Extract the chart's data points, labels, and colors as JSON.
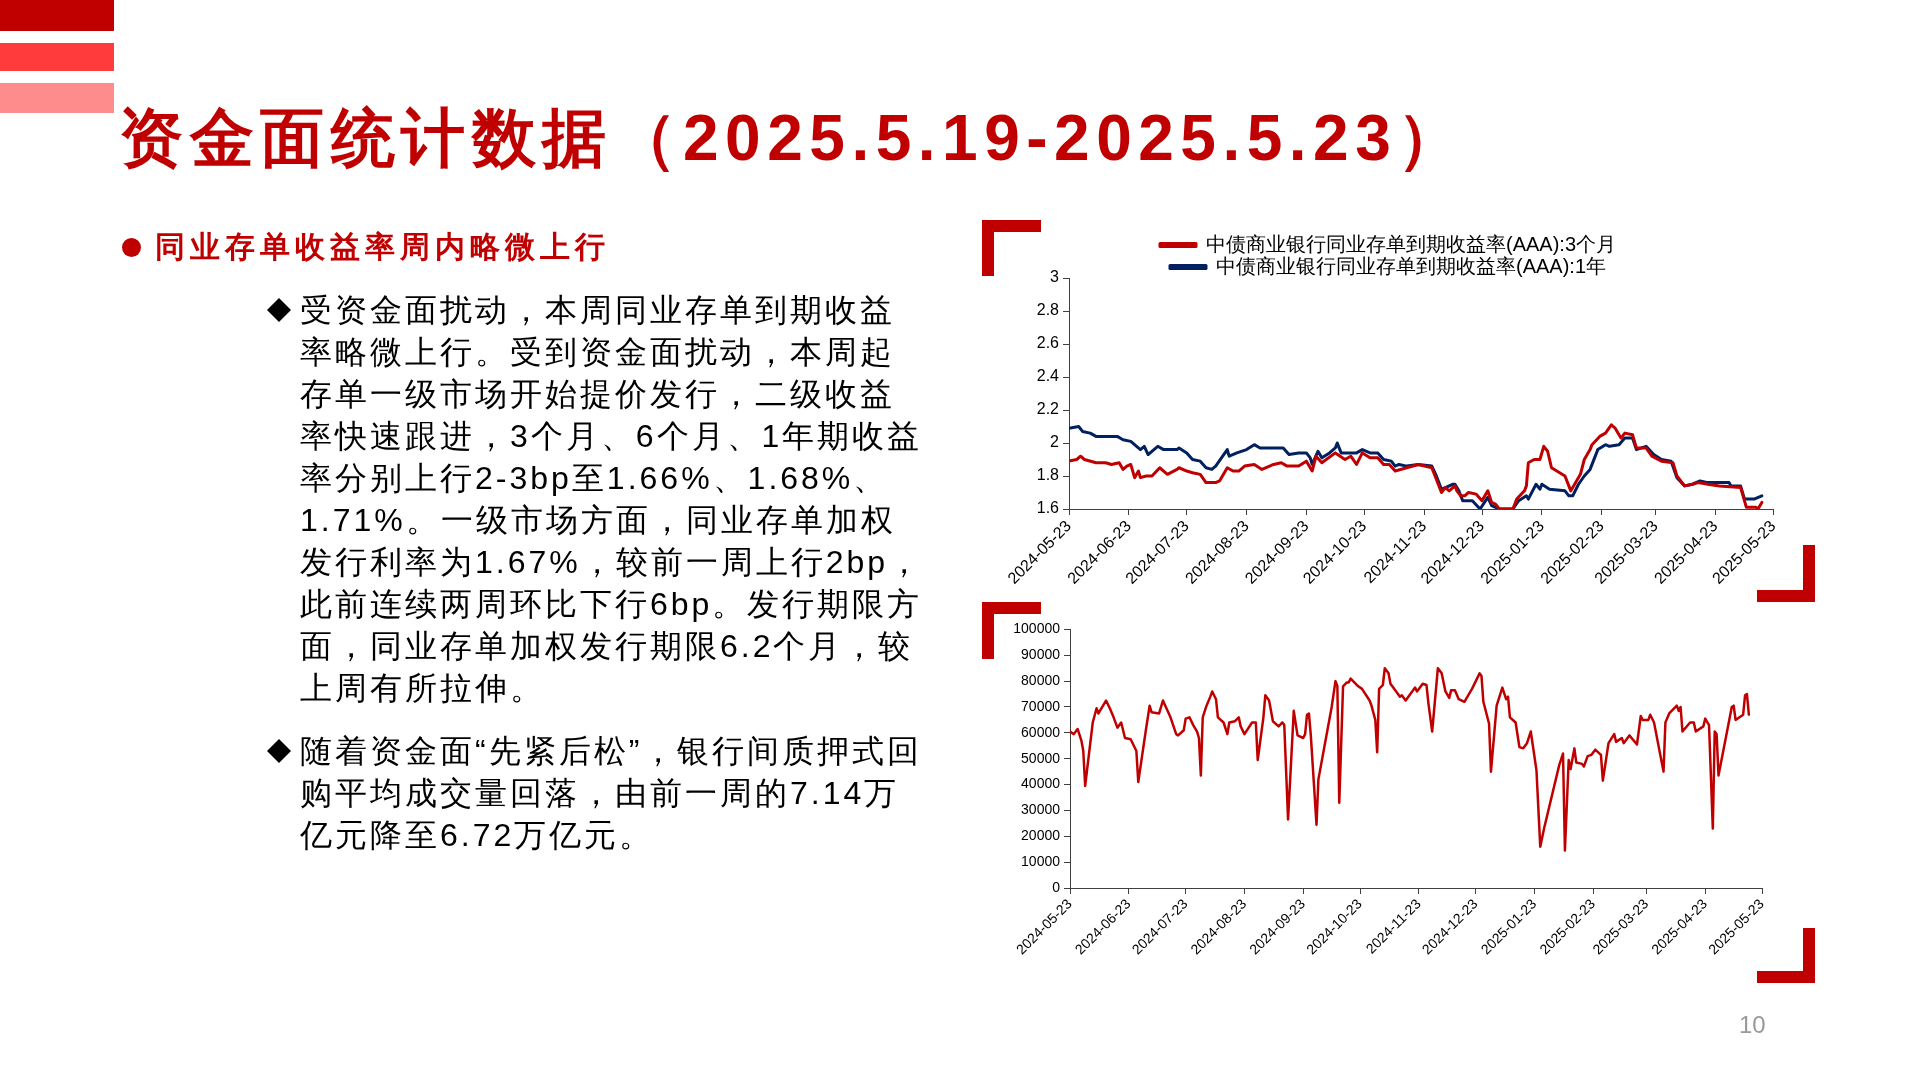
{
  "chart_data": [
    {
      "type": "other",
      "title": "资金面统计数据（2025.5.19-2025.5.23）",
      "annotations": [
        "同业存单收益率周内略微上行",
        "受资金面扰动，本周同业存单到期收益率略微上行。受到资金面扰动，本周起存单一级市场开始提价发行，二级收益率快速跟进，3个月、6个月、1年期收益率分别上行2-3bp至1.66%、1.68%、1.71%。一级市场方面，同业存单加权发行利率为1.67%，较前一周上行2bp，此前连续两周环比下行6bp。发行期限方面，同业存单加权发行期限6.2个月，较上周有所拉伸。",
        "随着资金面“先紧后松”，银行间质押式回购平均成交量回落，由前一周的7.14万亿元降至6.72万亿元。",
        "10"
      ]
    },
    {
      "type": "line",
      "legend": "top",
      "xlim": [
        "2024-05-23",
        "2025-05-23"
      ],
      "xticks": [
        "2024-05-23",
        "2024-06-23",
        "2024-07-23",
        "2024-08-23",
        "2024-09-23",
        "2024-10-23",
        "2024-11-23",
        "2024-12-23",
        "2025-01-23",
        "2025-02-23",
        "2025-03-23",
        "2025-04-23",
        "2025-05-23"
      ],
      "ylim": [
        1.6,
        3
      ],
      "yticks": [
        1.6,
        1.8,
        2,
        2.2,
        2.4,
        2.6,
        2.8,
        3
      ],
      "series": [
        {
          "name": "中债商业银行同业存单到期收益率(AAA):3个月",
          "color": "#c00000",
          "x": [
            "2024-05-23",
            "2024-05-27",
            "2024-05-29",
            "2024-05-31",
            "2024-06-06",
            "2024-06-11",
            "2024-06-14",
            "2024-06-18",
            "2024-06-20",
            "2024-06-22",
            "2024-06-24",
            "2024-06-26",
            "2024-06-28",
            "2024-06-29",
            "2024-07-02",
            "2024-07-05",
            "2024-07-09",
            "2024-07-13",
            "2024-07-18",
            "2024-07-19",
            "2024-07-23",
            "2024-07-26",
            "2024-07-30",
            "2024-08-02",
            "2024-08-07",
            "2024-08-09",
            "2024-08-13",
            "2024-08-16",
            "2024-08-19",
            "2024-08-22",
            "2024-08-27",
            "2024-08-31",
            "2024-09-06",
            "2024-09-10",
            "2024-09-13",
            "2024-09-19",
            "2024-09-23",
            "2024-09-26",
            "2024-09-28",
            "2024-10-01",
            "2024-10-08",
            "2024-10-13",
            "2024-10-16",
            "2024-10-19",
            "2024-10-22",
            "2024-10-26",
            "2024-10-30",
            "2024-11-02",
            "2024-11-05",
            "2024-11-08",
            "2024-11-14",
            "2024-11-20",
            "2024-11-27",
            "2024-12-02",
            "2024-12-04",
            "2024-12-06",
            "2024-12-09",
            "2024-12-10",
            "2024-12-12",
            "2024-12-14",
            "2024-12-16",
            "2024-12-20",
            "2024-12-23",
            "2024-12-26",
            "2024-12-28",
            "2024-12-30",
            "2025-01-01",
            "2025-01-08",
            "2025-01-10",
            "2025-01-14",
            "2025-01-15",
            "2025-01-16",
            "2025-01-19",
            "2025-01-22",
            "2025-01-24",
            "2025-01-26",
            "2025-01-28",
            "2025-02-04",
            "2025-02-07",
            "2025-02-09",
            "2025-02-12",
            "2025-02-14",
            "2025-02-17",
            "2025-02-18",
            "2025-02-22",
            "2025-02-25",
            "2025-02-28",
            "2025-03-02",
            "2025-03-05",
            "2025-03-07",
            "2025-03-11",
            "2025-03-13",
            "2025-03-18",
            "2025-03-21",
            "2025-03-26",
            "2025-04-01",
            "2025-04-03",
            "2025-04-07",
            "2025-04-11",
            "2025-04-14",
            "2025-04-19",
            "2025-04-25",
            "2025-05-06",
            "2025-05-09",
            "2025-05-14",
            "2025-05-15",
            "2025-05-17"
          ],
          "values": [
            1.89,
            1.9,
            1.92,
            1.9,
            1.88,
            1.88,
            1.87,
            1.88,
            1.84,
            1.86,
            1.87,
            1.79,
            1.83,
            1.79,
            1.8,
            1.8,
            1.85,
            1.81,
            1.84,
            1.85,
            1.83,
            1.82,
            1.81,
            1.76,
            1.76,
            1.77,
            1.85,
            1.83,
            1.83,
            1.86,
            1.87,
            1.84,
            1.87,
            1.88,
            1.86,
            1.86,
            1.89,
            1.83,
            1.92,
            1.88,
            1.94,
            1.9,
            1.92,
            1.87,
            1.94,
            1.91,
            1.91,
            1.87,
            1.87,
            1.83,
            1.85,
            1.87,
            1.85,
            1.7,
            1.73,
            1.71,
            1.74,
            1.71,
            1.68,
            1.68,
            1.7,
            1.69,
            1.65,
            1.71,
            1.64,
            1.63,
            1.6,
            1.6,
            1.66,
            1.71,
            1.74,
            1.88,
            1.9,
            1.9,
            1.98,
            1.95,
            1.85,
            1.8,
            1.71,
            1.75,
            1.81,
            1.9,
            1.96,
            1.99,
            2.04,
            2.06,
            2.11,
            2.09,
            2.03,
            2.06,
            2.05,
            1.97,
            1.97,
            1.92,
            1.89,
            1.88,
            1.8,
            1.74,
            1.75,
            1.76,
            1.75,
            1.74,
            1.73,
            1.61,
            1.61,
            1.6,
            1.64
          ]
        },
        {
          "name": "中债商业银行同业存单到期收益率(AAA):1年",
          "color": "#002060",
          "x": [
            "2024-05-23",
            "2024-05-28",
            "2024-05-30",
            "2024-06-03",
            "2024-06-06",
            "2024-06-11",
            "2024-06-17",
            "2024-06-20",
            "2024-06-24",
            "2024-06-29",
            "2024-07-01",
            "2024-07-03",
            "2024-07-08",
            "2024-07-11",
            "2024-07-18",
            "2024-07-19",
            "2024-07-23",
            "2024-07-26",
            "2024-07-30",
            "2024-08-02",
            "2024-08-05",
            "2024-08-07",
            "2024-08-13",
            "2024-08-14",
            "2024-08-18",
            "2024-08-23",
            "2024-08-27",
            "2024-08-30",
            "2024-09-04",
            "2024-09-11",
            "2024-09-14",
            "2024-09-19",
            "2024-09-23",
            "2024-09-25",
            "2024-09-26",
            "2024-09-29",
            "2024-10-01",
            "2024-10-05",
            "2024-10-08",
            "2024-10-09",
            "2024-10-11",
            "2024-10-15",
            "2024-10-19",
            "2024-10-22",
            "2024-10-26",
            "2024-10-30",
            "2024-11-02",
            "2024-11-06",
            "2024-11-08",
            "2024-11-10",
            "2024-11-14",
            "2024-11-20",
            "2024-11-27",
            "2024-11-29",
            "2024-12-02",
            "2024-12-04",
            "2024-12-08",
            "2024-12-09",
            "2024-12-11",
            "2024-12-13",
            "2024-12-18",
            "2024-12-22",
            "2024-12-26",
            "2024-12-28",
            "2025-01-01",
            "2025-01-08",
            "2025-01-11",
            "2025-01-15",
            "2025-01-16",
            "2025-01-20",
            "2025-01-22",
            "2025-01-23",
            "2025-01-27",
            "2025-02-04",
            "2025-02-06",
            "2025-02-08",
            "2025-02-11",
            "2025-02-14",
            "2025-02-17",
            "2025-02-21",
            "2025-02-25",
            "2025-02-27",
            "2025-03-04",
            "2025-03-07",
            "2025-03-11",
            "2025-03-13",
            "2025-03-18",
            "2025-03-22",
            "2025-03-26",
            "2025-03-31",
            "2025-04-03",
            "2025-04-07",
            "2025-04-11",
            "2025-04-15",
            "2025-04-19",
            "2025-04-25",
            "2025-04-30",
            "2025-05-01",
            "2025-05-06",
            "2025-05-08",
            "2025-05-13",
            "2025-05-17"
          ],
          "values": [
            2.09,
            2.1,
            2.07,
            2.06,
            2.04,
            2.04,
            2.04,
            2.02,
            2.01,
            1.96,
            1.98,
            1.93,
            1.98,
            1.96,
            1.96,
            1.97,
            1.94,
            1.9,
            1.89,
            1.85,
            1.84,
            1.86,
            1.96,
            1.92,
            1.94,
            1.96,
            1.99,
            1.97,
            1.97,
            1.97,
            1.93,
            1.94,
            1.94,
            1.91,
            1.87,
            1.95,
            1.91,
            1.94,
            1.97,
            2.0,
            1.94,
            1.94,
            1.94,
            1.96,
            1.94,
            1.94,
            1.9,
            1.89,
            1.86,
            1.87,
            1.86,
            1.87,
            1.86,
            1.81,
            1.72,
            1.73,
            1.75,
            1.75,
            1.71,
            1.65,
            1.65,
            1.6,
            1.67,
            1.62,
            1.6,
            1.6,
            1.65,
            1.68,
            1.66,
            1.75,
            1.72,
            1.75,
            1.72,
            1.71,
            1.68,
            1.68,
            1.75,
            1.8,
            1.84,
            1.96,
            1.99,
            1.98,
            1.99,
            2.03,
            2.03,
            1.96,
            1.98,
            1.93,
            1.9,
            1.89,
            1.79,
            1.74,
            1.75,
            1.77,
            1.76,
            1.76,
            1.76,
            1.74,
            1.74,
            1.66,
            1.66,
            1.68
          ]
        }
      ]
    },
    {
      "type": "line",
      "xlim": [
        "2024-05-23",
        "2025-05-23"
      ],
      "xticks": [
        "2024-05-23",
        "2024-06-23",
        "2024-07-23",
        "2024-08-23",
        "2024-09-23",
        "2024-10-23",
        "2024-11-23",
        "2024-12-23",
        "2025-01-23",
        "2025-02-23",
        "2025-03-23",
        "2025-04-23",
        "2025-05-23"
      ],
      "ylim": [
        0,
        100000
      ],
      "yticks": [
        0,
        10000,
        20000,
        30000,
        40000,
        50000,
        60000,
        70000,
        80000,
        90000,
        100000
      ],
      "series": [
        {
          "color": "#c00000",
          "x": [
            "2024-05-23",
            "2024-05-25",
            "2024-05-27",
            "2024-05-29",
            "2024-05-30",
            "2024-05-31",
            "2024-06-04",
            "2024-06-06",
            "2024-06-07",
            "2024-06-11",
            "2024-06-13",
            "2024-06-15",
            "2024-06-17",
            "2024-06-19",
            "2024-06-21",
            "2024-06-24",
            "2024-06-27",
            "2024-06-28",
            "2024-07-02",
            "2024-07-04",
            "2024-07-05",
            "2024-07-09",
            "2024-07-11",
            "2024-07-15",
            "2024-07-18",
            "2024-07-19",
            "2024-07-22",
            "2024-07-23",
            "2024-07-25",
            "2024-07-27",
            "2024-07-29",
            "2024-07-30",
            "2024-07-31",
            "2024-08-01",
            "2024-08-03",
            "2024-08-05",
            "2024-08-06",
            "2024-08-08",
            "2024-08-09",
            "2024-08-12",
            "2024-08-14",
            "2024-08-15",
            "2024-08-18",
            "2024-08-20",
            "2024-08-21",
            "2024-08-23",
            "2024-08-27",
            "2024-08-29",
            "2024-08-30",
            "2024-09-02",
            "2024-09-03",
            "2024-09-05",
            "2024-09-07",
            "2024-09-10",
            "2024-09-12",
            "2024-09-13",
            "2024-09-15",
            "2024-09-18",
            "2024-09-20",
            "2024-09-23",
            "2024-09-24",
            "2024-09-25",
            "2024-09-26",
            "2024-09-27",
            "2024-09-30",
            "2024-10-01",
            "2024-10-08",
            "2024-10-10",
            "2024-10-11",
            "2024-10-12",
            "2024-10-14",
            "2024-10-16",
            "2024-10-17",
            "2024-10-18",
            "2024-10-22",
            "2024-10-24",
            "2024-10-28",
            "2024-10-29",
            "2024-10-31",
            "2024-11-01",
            "2024-11-02",
            "2024-11-04",
            "2024-11-05",
            "2024-11-07",
            "2024-11-08",
            "2024-11-11",
            "2024-11-13",
            "2024-11-14",
            "2024-11-16",
            "2024-11-21",
            "2024-11-22",
            "2024-11-25",
            "2024-11-27",
            "2024-11-28",
            "2024-11-30",
            "2024-12-03",
            "2024-12-05",
            "2024-12-07",
            "2024-12-09",
            "2024-12-10",
            "2024-12-12",
            "2024-12-14",
            "2024-12-17",
            "2024-12-21",
            "2024-12-25",
            "2024-12-26",
            "2024-12-27",
            "2024-12-30",
            "2024-12-31",
            "2025-01-03",
            "2025-01-06",
            "2025-01-08",
            "2025-01-09",
            "2025-01-10",
            "2025-01-13",
            "2025-01-15",
            "2025-01-17",
            "2025-01-19",
            "2025-01-21",
            "2025-01-24",
            "2025-01-26",
            "2025-01-28",
            "2025-02-05",
            "2025-02-07",
            "2025-02-08",
            "2025-02-10",
            "2025-02-11",
            "2025-02-13",
            "2025-02-14",
            "2025-02-17",
            "2025-02-18",
            "2025-02-20",
            "2025-02-22",
            "2025-02-24",
            "2025-02-27",
            "2025-02-28",
            "2025-03-03",
            "2025-03-06",
            "2025-03-07",
            "2025-03-10",
            "2025-03-11",
            "2025-03-14",
            "2025-03-18",
            "2025-03-20",
            "2025-03-21",
            "2025-03-24",
            "2025-03-25",
            "2025-03-27",
            "2025-04-01",
            "2025-04-02",
            "2025-04-04",
            "2025-04-08",
            "2025-04-09",
            "2025-04-10",
            "2025-04-11",
            "2025-04-15",
            "2025-04-17",
            "2025-04-18",
            "2025-04-22",
            "2025-04-23",
            "2025-04-25",
            "2025-04-27",
            "2025-04-28",
            "2025-04-29",
            "2025-04-30",
            "2025-05-07",
            "2025-05-08",
            "2025-05-09",
            "2025-05-13",
            "2025-05-14",
            "2025-05-15",
            "2025-05-16"
          ],
          "values": [
            60500,
            59500,
            61500,
            57000,
            53000,
            39500,
            64000,
            69500,
            67500,
            72500,
            69500,
            66000,
            62000,
            64000,
            58000,
            57500,
            53000,
            41000,
            61000,
            70500,
            68000,
            67500,
            72500,
            66000,
            59500,
            59000,
            61000,
            65500,
            66000,
            63000,
            60500,
            58000,
            43500,
            66000,
            70500,
            74000,
            76000,
            73000,
            66000,
            64000,
            59500,
            64000,
            64500,
            66000,
            62500,
            59500,
            64000,
            64000,
            49500,
            66000,
            74500,
            72500,
            64500,
            62500,
            64000,
            63000,
            26500,
            68500,
            59000,
            58000,
            59500,
            67000,
            67500,
            59000,
            24500,
            42000,
            70000,
            80000,
            78000,
            33000,
            78000,
            79500,
            79500,
            81000,
            78000,
            77000,
            72500,
            70500,
            65000,
            52500,
            77000,
            78500,
            85000,
            83000,
            79000,
            76000,
            74000,
            74500,
            72500,
            77500,
            76000,
            79000,
            78500,
            71500,
            60500,
            85000,
            83000,
            76000,
            73500,
            76500,
            76500,
            73000,
            72000,
            77000,
            83000,
            82000,
            72000,
            63500,
            45000,
            70500,
            77500,
            73000,
            74000,
            66000,
            64000,
            54500,
            54000,
            56000,
            60500,
            45500,
            16000,
            23000,
            47500,
            52000,
            14500,
            49500,
            46000,
            54000,
            48500,
            48000,
            47000,
            51000,
            51500,
            53500,
            51500,
            41500,
            56000,
            59500,
            56500,
            58000,
            56000,
            59000,
            55500,
            66500,
            65000,
            65000,
            67000,
            64000,
            45000,
            64000,
            67500,
            70500,
            68500,
            70000,
            60500,
            64000,
            64000,
            60500,
            62500,
            65500,
            63000,
            23000,
            60500,
            59500,
            43500,
            70000,
            70500,
            65000,
            67000,
            74500,
            75000,
            67000
          ]
        }
      ]
    }
  ]
}
